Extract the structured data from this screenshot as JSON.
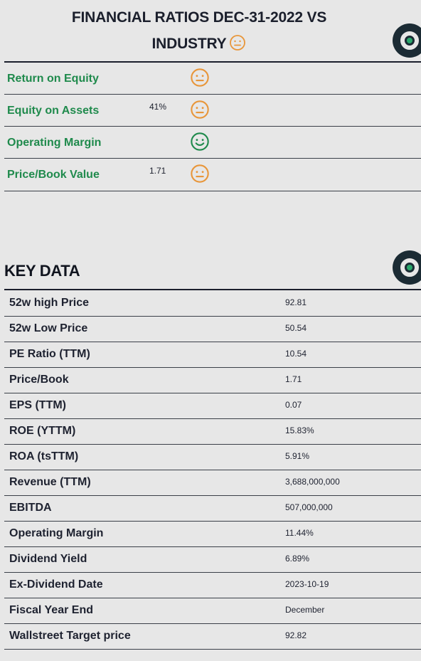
{
  "header": {
    "title_line1": "FINANCIAL RATIOS DEC-31-2022 VS",
    "title_line2": "INDUSTRY"
  },
  "colors": {
    "label_green": "#1f8a4c",
    "neutral_face": "#e8963a",
    "happy_face": "#1f8a4c",
    "dark": "#1b1f2c"
  },
  "ratios": [
    {
      "label": "Return on Equity",
      "value": "",
      "sentiment": "neutral-face-icon"
    },
    {
      "label": "Equity on Assets",
      "value": "41%",
      "sentiment": "neutral-face-icon"
    },
    {
      "label": "Operating Margin",
      "value": "",
      "sentiment": "happy-face-icon"
    },
    {
      "label": "Price/Book Value",
      "value": "1.71",
      "sentiment": "neutral-face-icon"
    }
  ],
  "key_data": {
    "title": "KEY DATA",
    "rows": [
      {
        "label": "52w high Price",
        "value": "92.81"
      },
      {
        "label": "52w Low Price",
        "value": "50.54"
      },
      {
        "label": "PE Ratio (TTM)",
        "value": "10.54"
      },
      {
        "label": "Price/Book",
        "value": "1.71"
      },
      {
        "label": "EPS (TTM)",
        "value": "0.07"
      },
      {
        "label": "ROE (YTTM)",
        "value": "15.83%"
      },
      {
        "label": "ROA (tsTTM)",
        "value": "5.91%"
      },
      {
        "label": "Revenue (TTM)",
        "value": "3,688,000,000"
      },
      {
        "label": "EBITDA",
        "value": "507,000,000"
      },
      {
        "label": "Operating Margin",
        "value": "11.44%"
      },
      {
        "label": "Dividend Yield",
        "value": "6.89%"
      },
      {
        "label": "Ex-Dividend Date",
        "value": "2023-10-19"
      },
      {
        "label": "Fiscal Year End",
        "value": "December"
      },
      {
        "label": "Wallstreet Target price",
        "value": "92.82"
      }
    ]
  }
}
